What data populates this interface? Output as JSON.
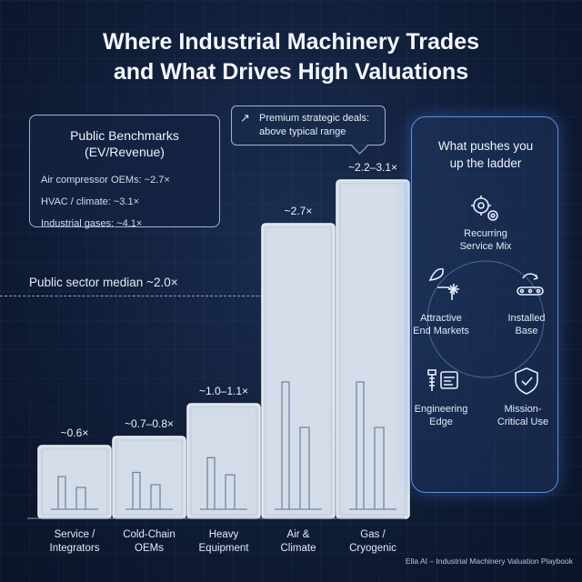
{
  "title_line1": "Where Industrial Machinery Trades",
  "title_line2": "and What Drives High Valuations",
  "benchmarks": {
    "title_line1": "Public Benchmarks",
    "title_line2": "(EV/Revenue)",
    "items": [
      "Air compressor OEMs: ~2.7×",
      "HVAC / climate: ~3.1×",
      "Industrial gases: ~4.1×"
    ]
  },
  "callout": {
    "arrow_icon": "arrow-up-right-icon",
    "line1": "Premium strategic deals:",
    "line2": "above typical range"
  },
  "median_label": "Public sector median ~2.0×",
  "drivers": {
    "title_line1": "What pushes you",
    "title_line2": "up the ladder",
    "items": [
      {
        "icon": "gears-icon",
        "line1": "Recurring",
        "line2": "Service Mix"
      },
      {
        "icon": "leaf-pipe-snowflake-icon",
        "line1": "Attractive",
        "line2": "End Markets"
      },
      {
        "icon": "conveyor-icon",
        "line1": "Installed",
        "line2": "Base"
      },
      {
        "icon": "screw-blueprint-icon",
        "line1": "Engineering",
        "line2": "Edge"
      },
      {
        "icon": "shield-check-icon",
        "line1": "Mission-",
        "line2": "Critical Use"
      }
    ]
  },
  "footer": "Ella AI – Industrial Machinery Valuation Playbook",
  "chart_data": {
    "type": "bar",
    "categories": [
      [
        "Service /",
        "Integrators"
      ],
      [
        "Cold-Chain",
        "OEMs"
      ],
      [
        "Heavy",
        "Equipment"
      ],
      [
        "Air &",
        "Climate"
      ],
      [
        "Gas /",
        "Cryogenic"
      ]
    ],
    "value_labels": [
      "~0.6×",
      "~0.7–0.8×",
      "~1.0–1.1×",
      "~2.7×",
      "~2.2–3.1×"
    ],
    "values": [
      0.6,
      0.75,
      1.05,
      2.7,
      3.1
    ],
    "reference_line": {
      "value": 2.0,
      "label": "Public sector median ~2.0×"
    },
    "ylabel": "EV/Revenue"
  }
}
